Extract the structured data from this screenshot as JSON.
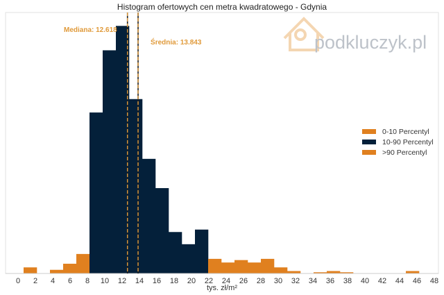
{
  "chart_data": {
    "type": "bar",
    "title": "Histogram ofertowych cen metra kwadratowego - Gdynia",
    "xlabel": "tys. zł/m²",
    "ylabel": "",
    "xlim": [
      0,
      48
    ],
    "ylim": [
      0,
      214
    ],
    "xticks": [
      0,
      2,
      4,
      6,
      8,
      10,
      12,
      14,
      16,
      18,
      20,
      22,
      24,
      26,
      28,
      30,
      32,
      34,
      36,
      38,
      40,
      42,
      44,
      46,
      48
    ],
    "bin_start": 0.64,
    "bin_width": 1.52,
    "values": [
      5,
      0,
      3,
      8,
      16,
      132,
      183,
      203,
      143,
      94,
      70,
      34,
      24,
      36,
      12,
      9,
      11,
      9,
      12,
      5,
      2,
      0,
      1,
      2,
      1,
      0,
      0,
      0,
      0,
      2
    ],
    "groups": [
      0,
      0,
      0,
      0,
      0,
      1,
      1,
      1,
      1,
      1,
      1,
      1,
      1,
      1,
      2,
      2,
      2,
      2,
      2,
      2,
      2,
      2,
      2,
      2,
      2,
      2,
      2,
      2,
      2,
      2
    ],
    "grid": false,
    "legend_position": "right",
    "legend": [
      {
        "label": "0-10 Percentyl",
        "color": "#e0801f"
      },
      {
        "label": "10-90 Percentyl",
        "color": "#04203a"
      },
      {
        "label": ">90 Percentyl",
        "color": "#e0801f"
      }
    ],
    "annotations": [
      {
        "label": "Mediana: 12.618",
        "x": 12.618
      },
      {
        "label": "Średnia: 13.843",
        "x": 13.843
      }
    ],
    "line_color": "#e09a3a",
    "watermark": "podkluczyk.pl"
  }
}
